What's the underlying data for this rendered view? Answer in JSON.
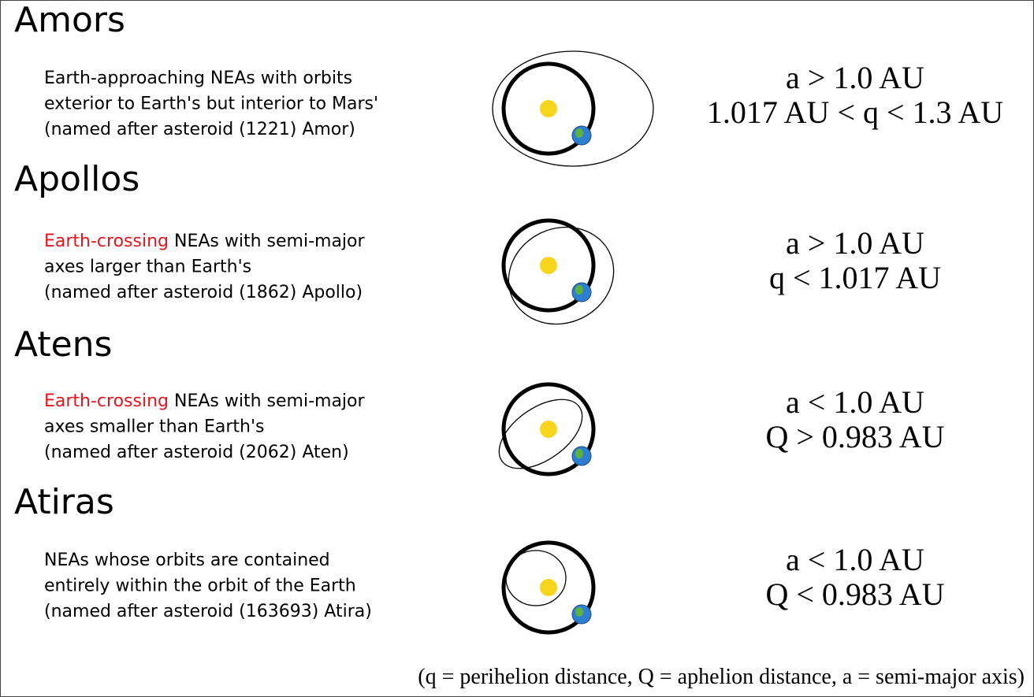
{
  "groups": [
    {
      "title": "Amors",
      "highlight": null,
      "description": [
        "Earth-approaching NEAs with orbits",
        "exterior to Earth's but interior to Mars'",
        "(named after asteroid (1221) Amor)"
      ],
      "criteria": [
        "a > 1.0 AU",
        "1.017 AU < q < 1.3 AU"
      ]
    },
    {
      "title": "Apollos",
      "highlight": "Earth-crossing",
      "description": [
        "NEAs with semi-major",
        "axes larger than Earth's",
        "(named after asteroid (1862) Apollo)"
      ],
      "criteria": [
        "a > 1.0 AU",
        "q < 1.017 AU"
      ]
    },
    {
      "title": "Atens",
      "highlight": "Earth-crossing",
      "description": [
        "NEAs with semi-major",
        "axes smaller than Earth's",
        "(named after asteroid (2062) Aten)"
      ],
      "criteria": [
        "a < 1.0 AU",
        "Q > 0.983 AU"
      ]
    },
    {
      "title": "Atiras",
      "highlight": null,
      "description": [
        "NEAs whose orbits are contained",
        "entirely within the orbit of the Earth",
        "(named after asteroid (163693) Atira)"
      ],
      "criteria": [
        "a < 1.0 AU",
        "Q < 0.983 AU"
      ]
    }
  ],
  "footnote": "(q = perihelion distance, Q = aphelion distance, a = semi-major axis)"
}
